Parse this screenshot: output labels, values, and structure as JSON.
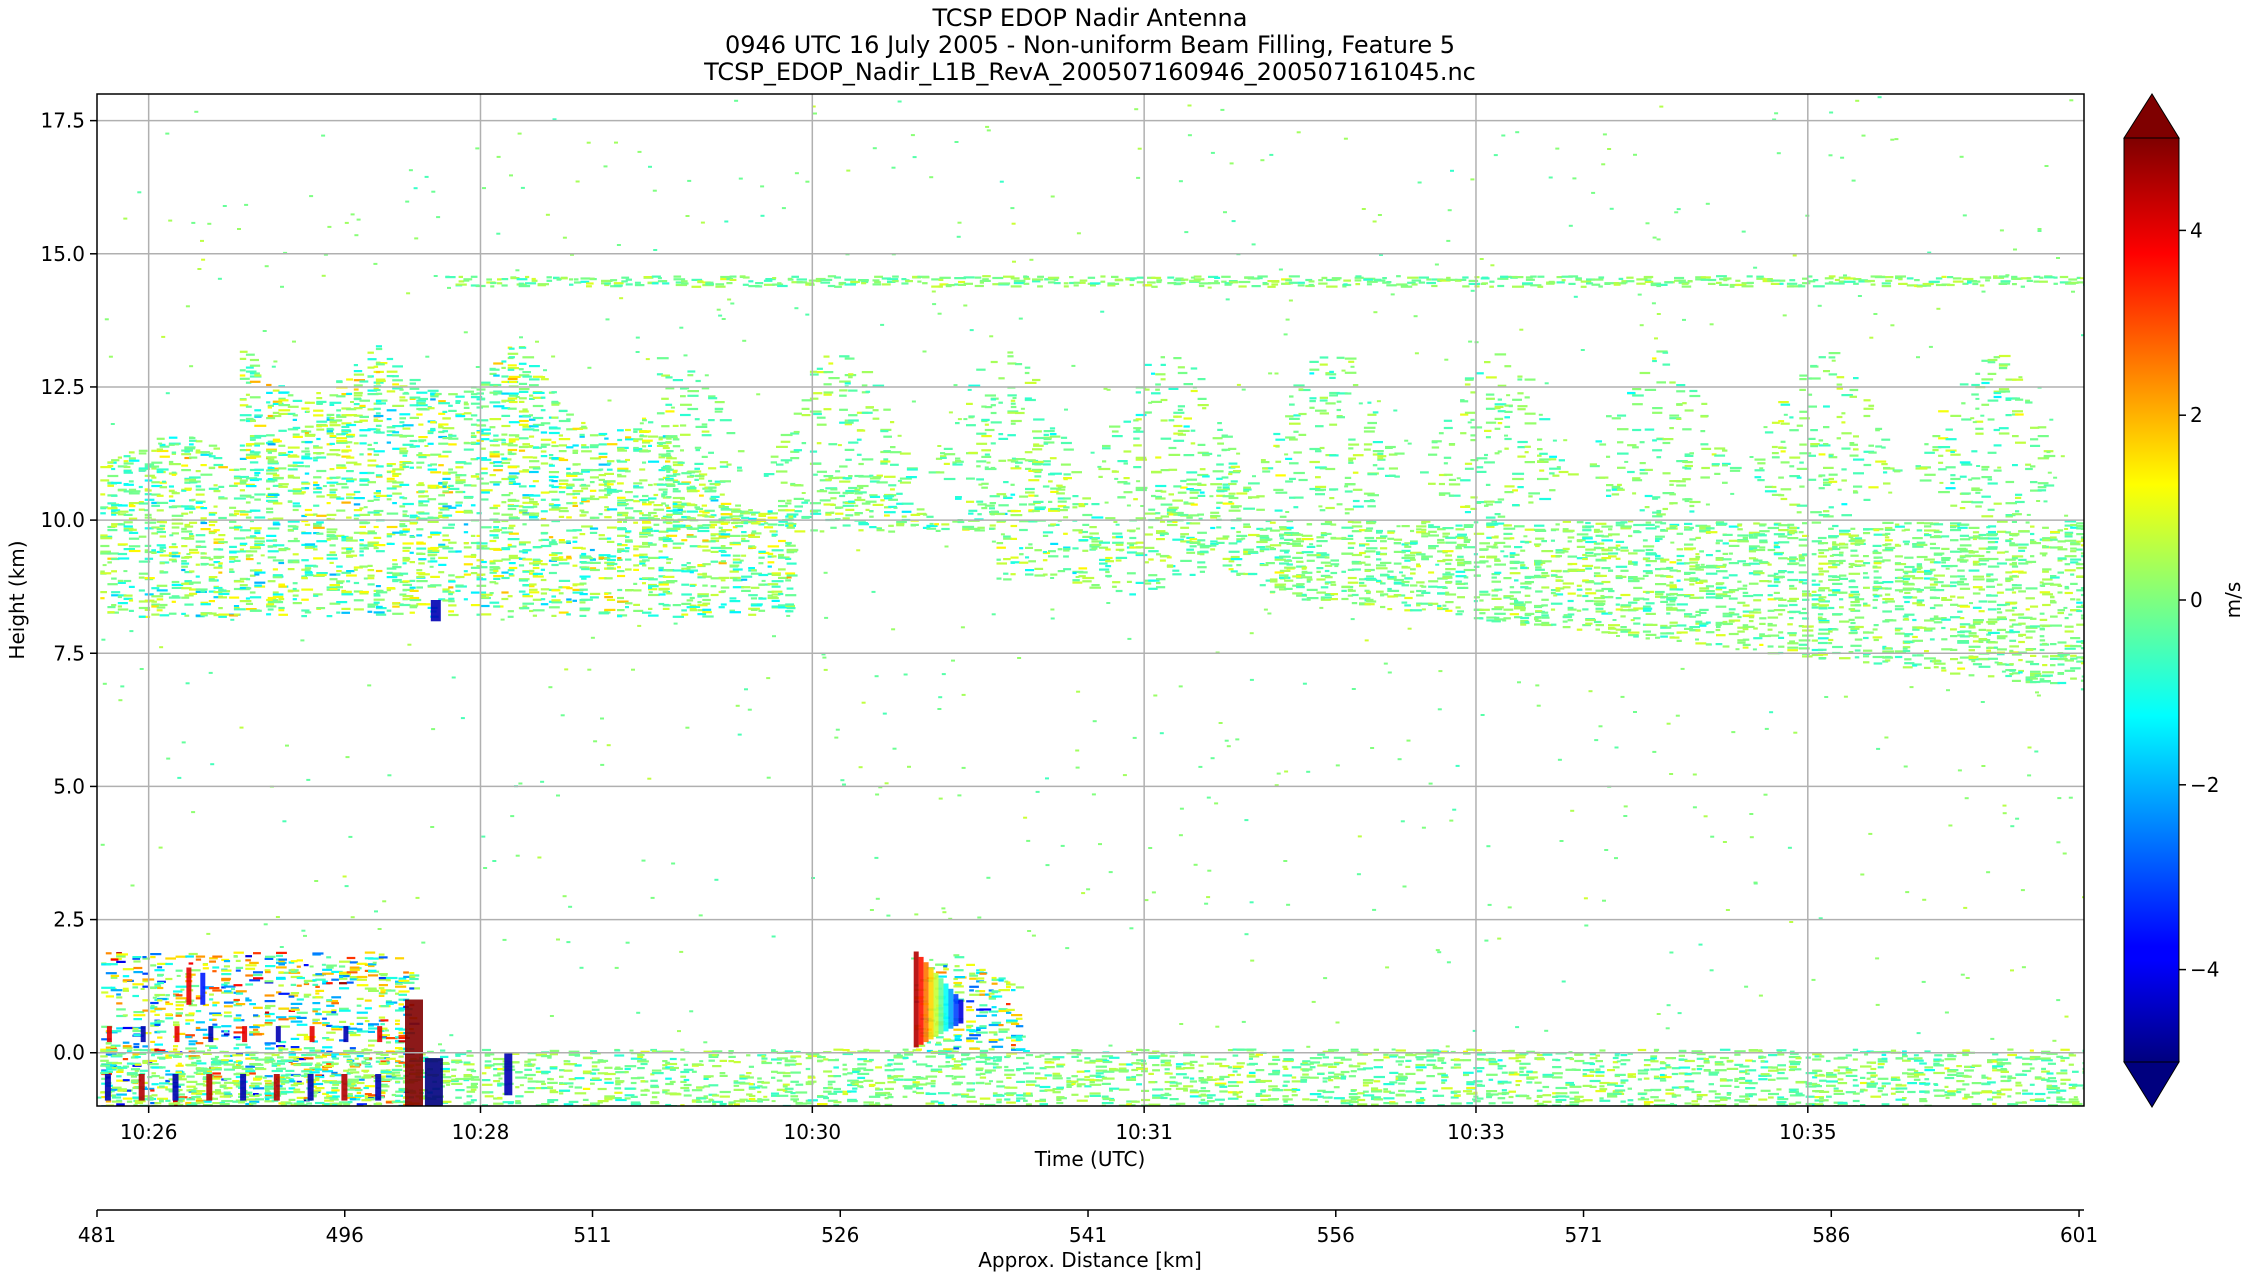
{
  "chart_data": {
    "type": "heatmap",
    "title_lines": [
      "TCSP EDOP Nadir Antenna",
      "0946 UTC 16 July 2005 - Non-uniform Beam Filling, Feature 5",
      "TCSP_EDOP_Nadir_L1B_RevA_200507160946_200507161045.nc"
    ],
    "xlabel": "Time (UTC)",
    "ylabel": "Height (km)",
    "x_ticks": [
      "10:26",
      "10:28",
      "10:30",
      "10:31",
      "10:33",
      "10:35"
    ],
    "y_ticks": [
      0.0,
      2.5,
      5.0,
      7.5,
      10.0,
      12.5,
      15.0,
      17.5
    ],
    "y_tick_labels": [
      "0.0",
      "2.5",
      "5.0",
      "7.5",
      "10.0",
      "12.5",
      "15.0",
      "17.5"
    ],
    "ylim": [
      -1.0,
      18.0
    ],
    "grid": true,
    "secondary_x_axis": {
      "label": "Approx. Distance [km]",
      "ticks": [
        481,
        496,
        511,
        526,
        541,
        556,
        571,
        586,
        601
      ],
      "tick_labels": [
        "481",
        "496",
        "511",
        "526",
        "541",
        "556",
        "571",
        "586",
        "601"
      ],
      "range": [
        481,
        601.3
      ]
    },
    "colorbar": {
      "label": "m/s",
      "colormap": "jet",
      "range": [
        -5,
        5
      ],
      "extend": "both",
      "ticks": [
        -4,
        -2,
        0,
        2,
        4
      ],
      "tick_labels": [
        "−4",
        "−2",
        "0",
        "2",
        "4"
      ],
      "extend_colors": {
        "under": "#00007f",
        "over": "#7f0000"
      }
    },
    "features": [
      {
        "name": "thin cloud layer",
        "height_km": [
          14.4,
          14.6
        ],
        "extent": "10:28 to end",
        "velocity_ms": 0
      },
      {
        "name": "anvil cloud, left",
        "height_km": [
          8.0,
          13.5
        ],
        "extent": "start to ~10:30",
        "velocity_ms": 0
      },
      {
        "name": "cloud turrets",
        "height_km": [
          9.5,
          13.0
        ],
        "extent": "10:29 to 10:35",
        "velocity_ms": 0
      },
      {
        "name": "lower cloud deck, right",
        "height_km": [
          6.7,
          10.0
        ],
        "extent": "~10:32 to end",
        "velocity_ms": 0
      },
      {
        "name": "low-level rain, left",
        "height_km": [
          -1.0,
          2.0
        ],
        "extent": "start to ~10:27",
        "velocity_ms": [
          -5,
          5
        ]
      },
      {
        "name": "low convective cell",
        "height_km": [
          0.0,
          2.0
        ],
        "extent": "~10:30",
        "velocity_ms": [
          -4,
          5
        ]
      },
      {
        "name": "surface return band",
        "height_km": [
          -1.0,
          0.1
        ],
        "extent": "full",
        "velocity_ms": 0
      }
    ]
  }
}
